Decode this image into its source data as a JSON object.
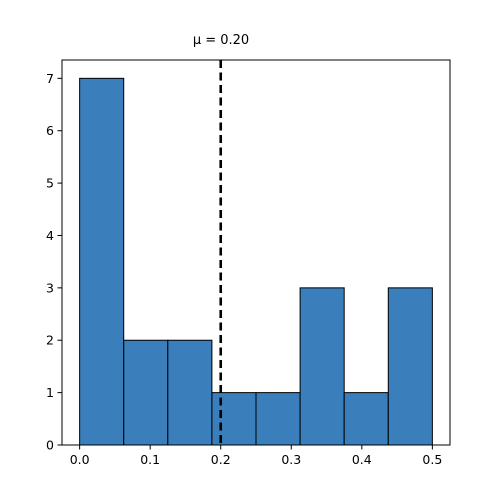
{
  "chart_data": {
    "type": "bar",
    "subtype": "histogram",
    "title": "μ = 0.20",
    "xlabel": "",
    "ylabel": "",
    "bins": [
      {
        "x0": 0.0,
        "x1": 0.0625,
        "count": 7
      },
      {
        "x0": 0.0625,
        "x1": 0.125,
        "count": 2
      },
      {
        "x0": 0.125,
        "x1": 0.1875,
        "count": 2
      },
      {
        "x0": 0.1875,
        "x1": 0.25,
        "count": 1
      },
      {
        "x0": 0.25,
        "x1": 0.3125,
        "count": 1
      },
      {
        "x0": 0.3125,
        "x1": 0.375,
        "count": 3
      },
      {
        "x0": 0.375,
        "x1": 0.4375,
        "count": 1
      },
      {
        "x0": 0.4375,
        "x1": 0.5,
        "count": 3
      }
    ],
    "mean_line": {
      "value": 0.2,
      "style": "dashed",
      "color": "#000000"
    },
    "xlim": [
      -0.025,
      0.525
    ],
    "ylim": [
      0,
      7.35
    ],
    "xticks": [
      0.0,
      0.1,
      0.2,
      0.3,
      0.4,
      0.5
    ],
    "xtick_labels": [
      "0.0",
      "0.1",
      "0.2",
      "0.3",
      "0.4",
      "0.5"
    ],
    "yticks": [
      0,
      1,
      2,
      3,
      4,
      5,
      6,
      7
    ],
    "ytick_labels": [
      "0",
      "1",
      "2",
      "3",
      "4",
      "5",
      "6",
      "7"
    ],
    "bar_color": "#3a7ebb",
    "edge_color": "#000000",
    "grid": false
  }
}
